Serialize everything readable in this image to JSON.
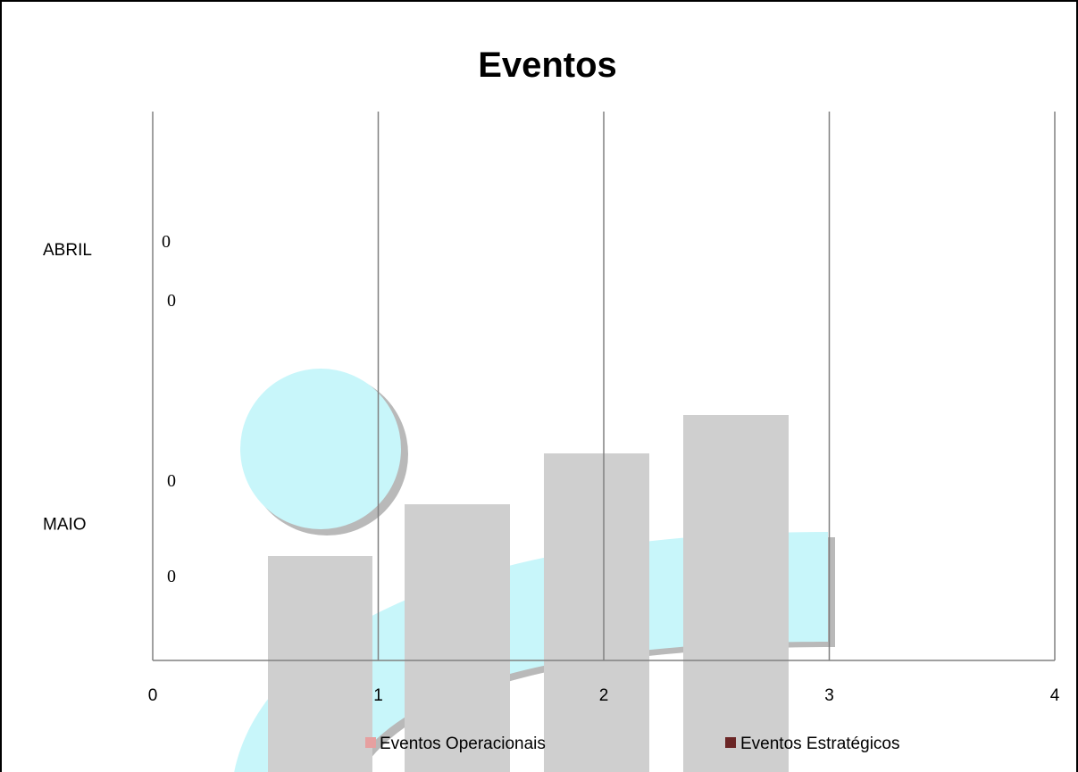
{
  "chart_data": {
    "type": "bar",
    "orientation": "horizontal",
    "title": "Eventos",
    "categories": [
      "ABRIL",
      "MAIO"
    ],
    "series": [
      {
        "name": "Eventos Operacionais",
        "values": [
          0,
          0
        ],
        "color": "#e6a0a0"
      },
      {
        "name": "Eventos Estratégicos",
        "values": [
          0,
          0
        ],
        "color": "#6b2626"
      }
    ],
    "xlim": [
      0,
      4
    ],
    "x_ticks": [
      "0",
      "1",
      "2",
      "3",
      "4"
    ],
    "grid": "vertical",
    "legend_position": "bottom"
  },
  "watermark": {
    "colors": {
      "cyan": "#c8f6fa",
      "bar": "#cfcfcf",
      "shadow": "#b9b9b9"
    }
  }
}
